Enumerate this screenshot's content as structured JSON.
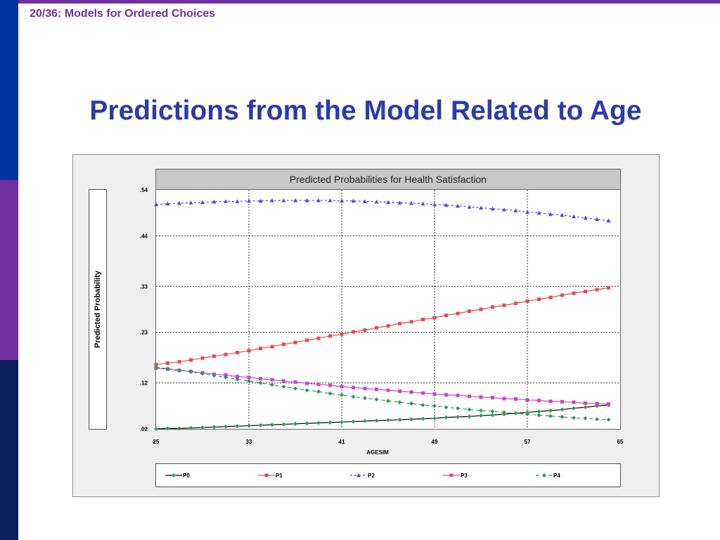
{
  "slide": {
    "crumb": "20/36:  Models for Ordered Choices",
    "title": "Predictions from the Model Related to Age"
  },
  "colors": {
    "bar_blue": "#0033a0",
    "bar_purple": "#7030a0",
    "bar_navy": "#0a1f5c",
    "title_blue": "#2b3ba8"
  },
  "chart_data": {
    "type": "line",
    "title": "Predicted Probabilities for Health Satisfaction",
    "xlabel": "AGESIM",
    "ylabel": "Predicted Probability",
    "x_ticks": [
      25,
      33,
      41,
      49,
      57,
      65
    ],
    "y_ticks": [
      0.02,
      0.12,
      0.23,
      0.33,
      0.44,
      0.54
    ],
    "y_tick_labels": [
      ".02",
      ".12",
      ".23",
      ".33",
      ".44",
      ".54"
    ],
    "xlim": [
      25,
      65
    ],
    "ylim": [
      0.02,
      0.54
    ],
    "grid": true,
    "legend_position": "bottom",
    "x": [
      25,
      26,
      27,
      28,
      29,
      30,
      31,
      32,
      33,
      34,
      35,
      36,
      37,
      38,
      39,
      40,
      41,
      42,
      43,
      44,
      45,
      46,
      47,
      48,
      49,
      50,
      51,
      52,
      53,
      54,
      55,
      56,
      57,
      58,
      59,
      60,
      61,
      62,
      63,
      64
    ],
    "series": [
      {
        "name": "P0",
        "color": "#000000",
        "marker": "diamond",
        "dash": "",
        "marker_color": "#2e9a5a",
        "values": [
          0.02,
          0.021,
          0.021,
          0.022,
          0.023,
          0.024,
          0.025,
          0.026,
          0.027,
          0.028,
          0.029,
          0.03,
          0.031,
          0.032,
          0.033,
          0.034,
          0.035,
          0.036,
          0.037,
          0.038,
          0.039,
          0.04,
          0.041,
          0.042,
          0.043,
          0.045,
          0.046,
          0.047,
          0.049,
          0.05,
          0.052,
          0.054,
          0.056,
          0.058,
          0.06,
          0.062,
          0.065,
          0.067,
          0.07,
          0.072
        ]
      },
      {
        "name": "P1",
        "color": "#e84a4a",
        "marker": "square",
        "dash": "",
        "values": [
          0.16,
          0.163,
          0.166,
          0.17,
          0.174,
          0.178,
          0.182,
          0.186,
          0.19,
          0.195,
          0.199,
          0.204,
          0.208,
          0.213,
          0.217,
          0.222,
          0.226,
          0.231,
          0.235,
          0.24,
          0.244,
          0.249,
          0.253,
          0.258,
          0.262,
          0.267,
          0.271,
          0.276,
          0.28,
          0.285,
          0.289,
          0.293,
          0.298,
          0.302,
          0.306,
          0.311,
          0.315,
          0.319,
          0.323,
          0.327
        ]
      },
      {
        "name": "P2",
        "color": "#4a4adf",
        "marker": "triangle",
        "dash": "3,3",
        "values": [
          0.508,
          0.51,
          0.511,
          0.512,
          0.513,
          0.514,
          0.515,
          0.515,
          0.516,
          0.516,
          0.517,
          0.517,
          0.517,
          0.517,
          0.517,
          0.517,
          0.516,
          0.516,
          0.515,
          0.514,
          0.513,
          0.512,
          0.511,
          0.51,
          0.508,
          0.507,
          0.505,
          0.503,
          0.501,
          0.499,
          0.497,
          0.495,
          0.492,
          0.49,
          0.487,
          0.485,
          0.482,
          0.479,
          0.476,
          0.473
        ]
      },
      {
        "name": "P3",
        "color": "#cc44cc",
        "marker": "square",
        "dash": "",
        "values": [
          0.152,
          0.15,
          0.147,
          0.145,
          0.142,
          0.139,
          0.137,
          0.134,
          0.132,
          0.129,
          0.127,
          0.124,
          0.122,
          0.119,
          0.117,
          0.115,
          0.112,
          0.11,
          0.108,
          0.106,
          0.104,
          0.102,
          0.1,
          0.098,
          0.096,
          0.094,
          0.093,
          0.091,
          0.089,
          0.088,
          0.086,
          0.085,
          0.083,
          0.082,
          0.08,
          0.079,
          0.078,
          0.076,
          0.075,
          0.074
        ]
      },
      {
        "name": "P4",
        "color": "#2e9a5a",
        "marker": "diamond",
        "dash": "5,4",
        "values": [
          0.154,
          0.151,
          0.148,
          0.144,
          0.14,
          0.136,
          0.132,
          0.128,
          0.124,
          0.12,
          0.116,
          0.112,
          0.108,
          0.104,
          0.101,
          0.097,
          0.094,
          0.09,
          0.087,
          0.084,
          0.081,
          0.078,
          0.075,
          0.072,
          0.07,
          0.067,
          0.065,
          0.062,
          0.06,
          0.058,
          0.056,
          0.054,
          0.052,
          0.05,
          0.048,
          0.046,
          0.044,
          0.043,
          0.041,
          0.04
        ]
      }
    ]
  }
}
